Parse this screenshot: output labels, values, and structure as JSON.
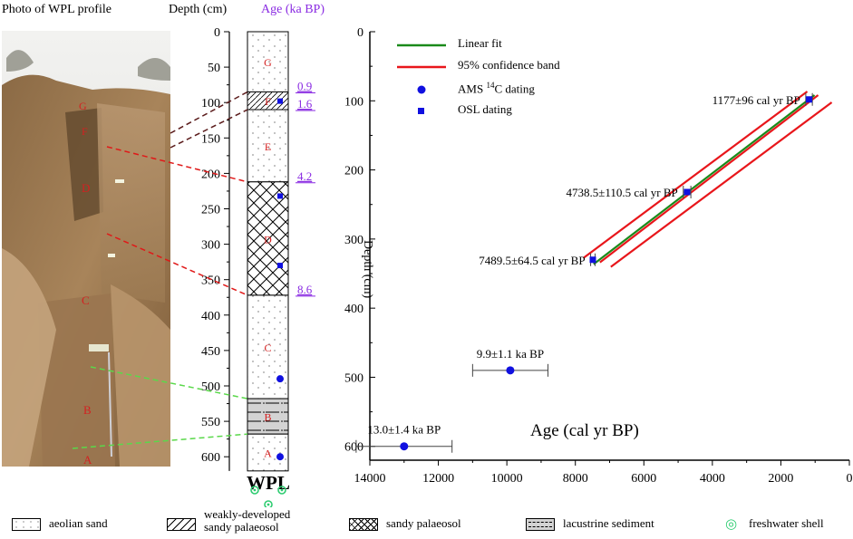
{
  "headers": {
    "photo_title": "Photo of WPL  profile",
    "depth_title": "Depth (cm)",
    "age_title": "Age (ka BP)",
    "profile_name": "WPL"
  },
  "colors": {
    "linear_fit": "#1a8a1a",
    "confidence": "#e8161b",
    "dating": "#1010e0",
    "age_label": "#8a2be2",
    "unit_label": "#d42020",
    "shell": "#2ecc71"
  },
  "column": {
    "depth_ticks": [
      "0",
      "50",
      "100",
      "150",
      "200",
      "250",
      "300",
      "350",
      "400",
      "450",
      "500",
      "550",
      "600"
    ],
    "units": [
      {
        "label": "G",
        "top": 0,
        "bottom": 85,
        "fill": "sand"
      },
      {
        "label": "F",
        "top": 85,
        "bottom": 110,
        "fill": "weak"
      },
      {
        "label": "E",
        "top": 110,
        "bottom": 212,
        "fill": "sand"
      },
      {
        "label": "D",
        "top": 212,
        "bottom": 372,
        "fill": "cross"
      },
      {
        "label": "C",
        "top": 372,
        "bottom": 518,
        "fill": "sand"
      },
      {
        "label": "B",
        "top": 518,
        "bottom": 568,
        "fill": "lake"
      },
      {
        "label": "A",
        "top": 568,
        "bottom": 620,
        "fill": "sand"
      }
    ],
    "age_labels": [
      {
        "text": "0.9",
        "depth": 85
      },
      {
        "text": "1.6",
        "depth": 110
      },
      {
        "text": "4.2",
        "depth": 212
      },
      {
        "text": "8.6",
        "depth": 372
      }
    ],
    "samples": [
      {
        "depth": 98,
        "kind": "osl"
      },
      {
        "depth": 232,
        "kind": "osl"
      },
      {
        "depth": 330,
        "kind": "osl"
      },
      {
        "depth": 490,
        "kind": "ams"
      },
      {
        "depth": 600,
        "kind": "ams"
      }
    ]
  },
  "photo_units": [
    "G",
    "F",
    "E",
    "D",
    "C",
    "B",
    "A"
  ],
  "chart_data": {
    "type": "scatter",
    "xlabel": "Age (cal yr BP)",
    "ylabel": "Depth (cm)",
    "xlim": [
      14000,
      0
    ],
    "ylim": [
      0,
      620
    ],
    "x_ticks": [
      "14000",
      "12000",
      "10000",
      "8000",
      "6000",
      "4000",
      "2000",
      "0"
    ],
    "y_ticks": [
      "0",
      "100",
      "200",
      "300",
      "400",
      "500",
      "600"
    ],
    "legend": {
      "linear_fit": "Linear fit",
      "confidence": "95% confidence band",
      "ams_pre": "AMS ",
      "ams_sup": "14",
      "ams_post": "C dating",
      "osl": "OSL dating"
    },
    "points": [
      {
        "age": 1177,
        "err": 96,
        "depth": 98,
        "kind": "osl",
        "label": "1177±96 cal yr BP"
      },
      {
        "age": 4738.5,
        "err": 110.5,
        "depth": 232,
        "kind": "osl",
        "label": "4738.5±110.5 cal yr BP"
      },
      {
        "age": 7489.5,
        "err": 64.5,
        "depth": 330,
        "kind": "osl",
        "label": "7489.5±64.5 cal yr BP"
      },
      {
        "age": 9900,
        "err": 1100,
        "depth": 490,
        "kind": "ams",
        "label": "9.9±1.1 ka BP"
      },
      {
        "age": 13000,
        "err": 1400,
        "depth": 600,
        "kind": "ams",
        "label": "13.0±1.4 ka BP"
      }
    ],
    "fit": {
      "age_start": 1150,
      "depth_start": 97,
      "age_end": 7600,
      "depth_end": 335
    }
  },
  "bottom_legend": {
    "aeolian": "aeolian  sand",
    "weak_line1": "weakly-developed",
    "weak_line2": "sandy palaeosol",
    "palaeosol": "sandy palaeosol",
    "lacustrine": "lacustrine  sediment",
    "shell": "freshwater shell"
  }
}
